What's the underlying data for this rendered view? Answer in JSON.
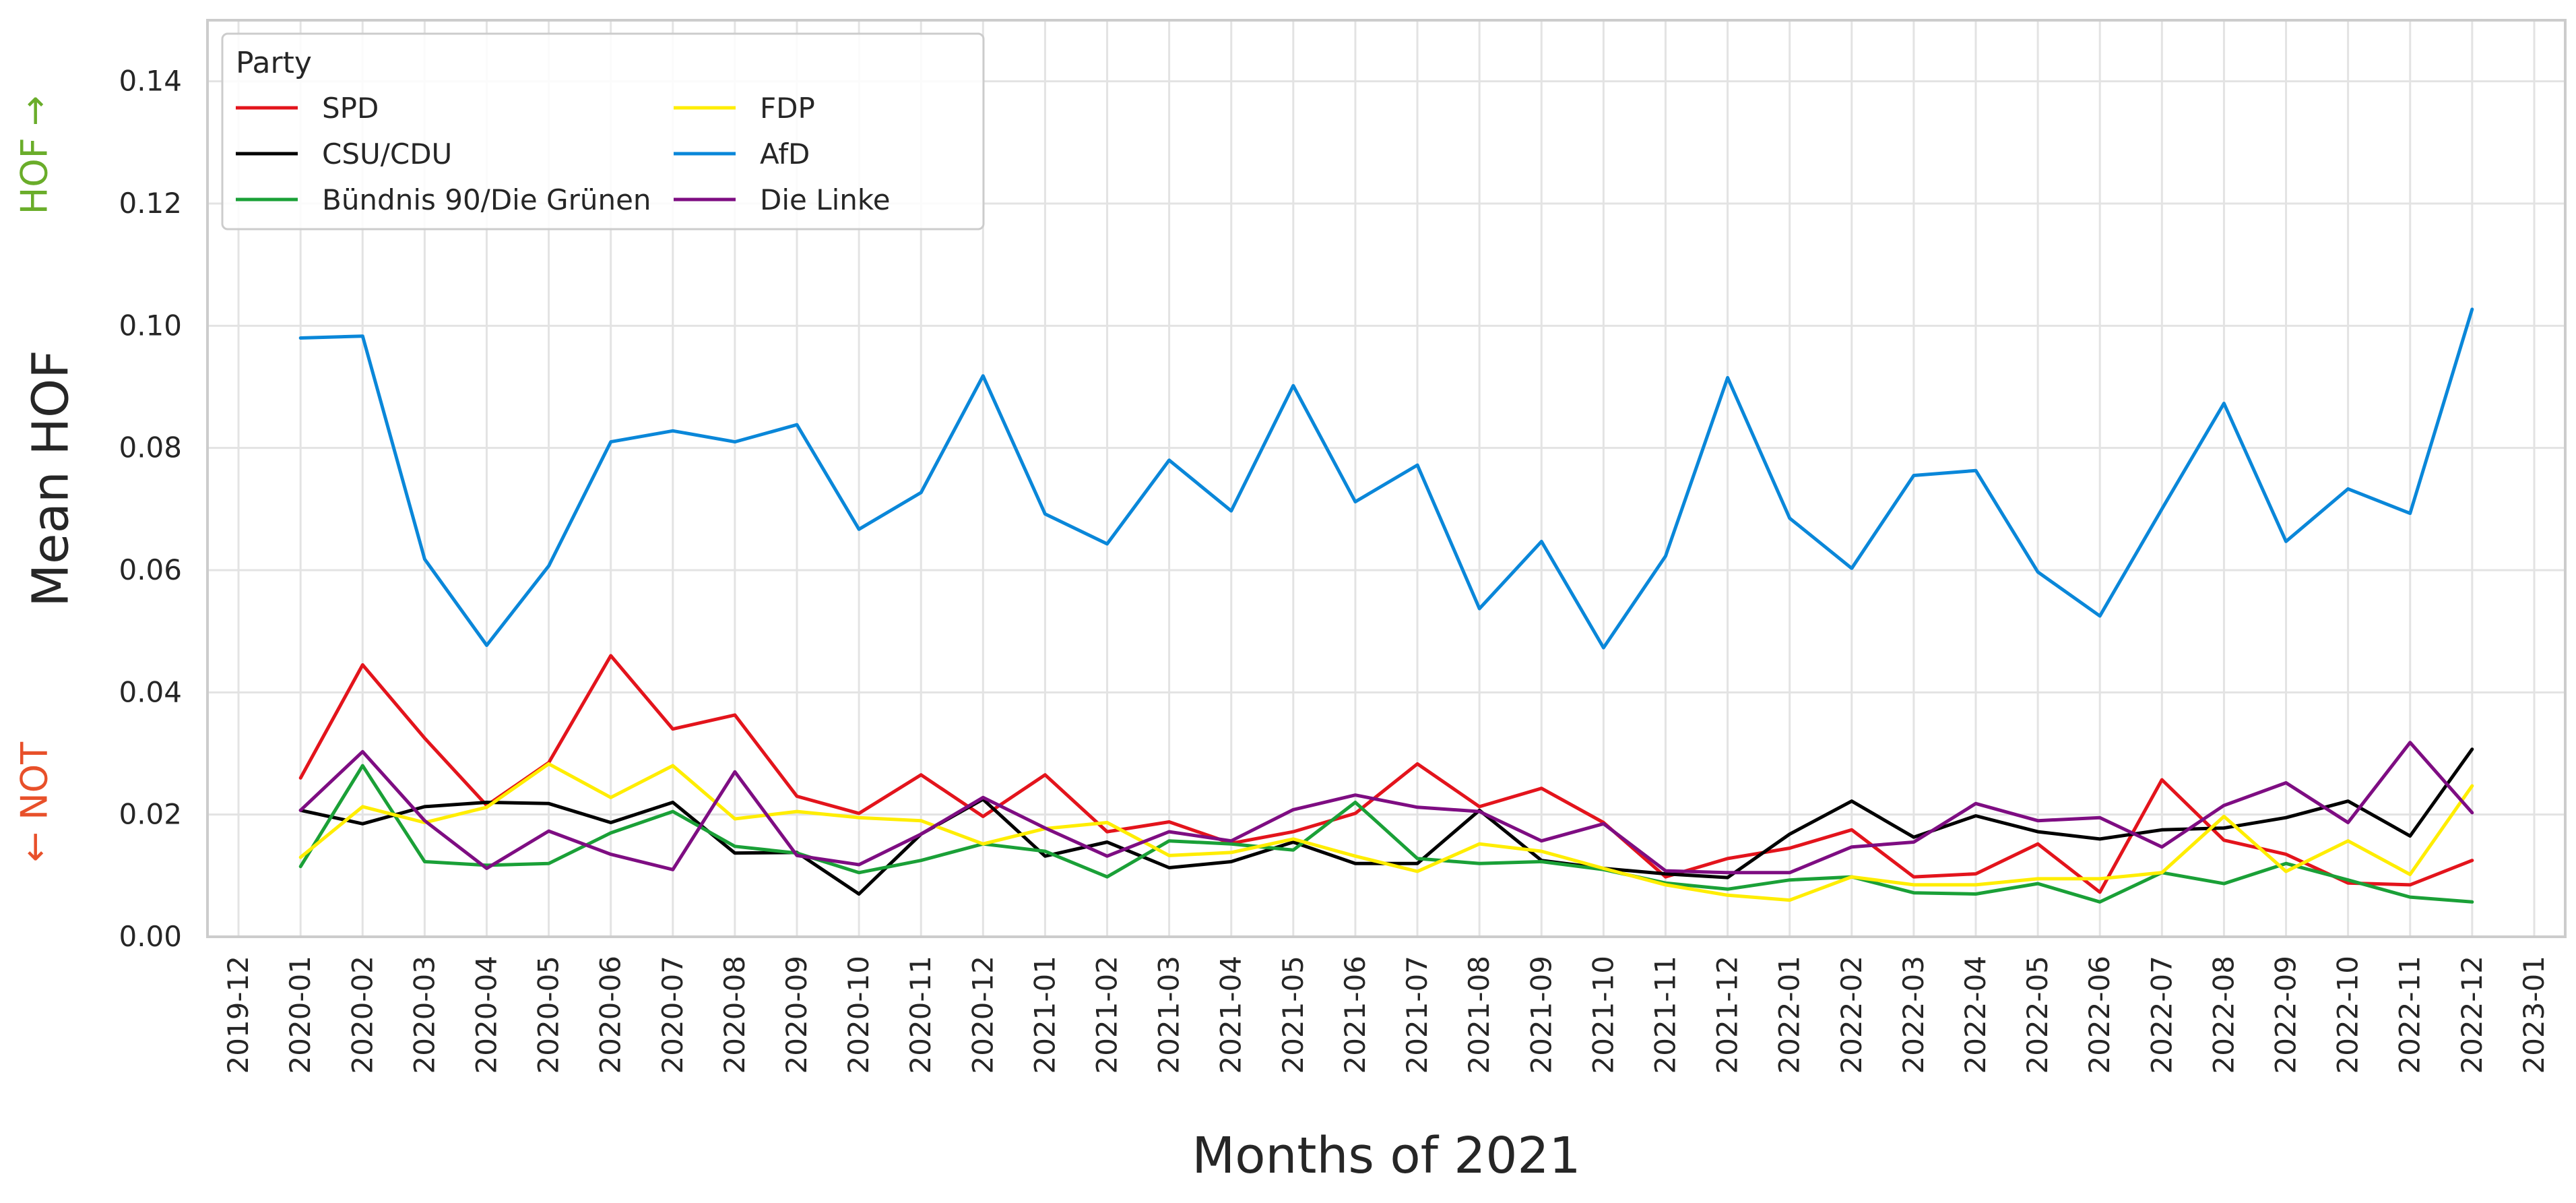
{
  "chart_data": {
    "type": "line",
    "xlabel": "Months of 2021",
    "ylabel": "Mean HOF",
    "ylim": [
      0,
      0.15
    ],
    "yticks": [
      "0.00",
      "0.02",
      "0.04",
      "0.06",
      "0.08",
      "0.10",
      "0.12",
      "0.14"
    ],
    "grid": true,
    "legend_title": "Party",
    "legend_position": "upper-left",
    "y_hint_top": "HOF →",
    "y_hint_bottom": "← NOT",
    "y_hint_top_color": "#6aad2a",
    "y_hint_bottom_color": "#e8502a",
    "x_ticks": [
      "2019-12",
      "2020-01",
      "2020-02",
      "2020-03",
      "2020-04",
      "2020-05",
      "2020-06",
      "2020-07",
      "2020-08",
      "2020-09",
      "2020-10",
      "2020-11",
      "2020-12",
      "2021-01",
      "2021-02",
      "2021-03",
      "2021-04",
      "2021-05",
      "2021-06",
      "2021-07",
      "2021-08",
      "2021-09",
      "2021-10",
      "2021-11",
      "2021-12",
      "2022-01",
      "2022-02",
      "2022-03",
      "2022-04",
      "2022-05",
      "2022-06",
      "2022-07",
      "2022-08",
      "2022-09",
      "2022-10",
      "2022-11",
      "2022-12",
      "2023-01"
    ],
    "x": [
      "2020-01",
      "2020-02",
      "2020-03",
      "2020-04",
      "2020-05",
      "2020-06",
      "2020-07",
      "2020-08",
      "2020-09",
      "2020-10",
      "2020-11",
      "2020-12",
      "2021-01",
      "2021-02",
      "2021-03",
      "2021-04",
      "2021-05",
      "2021-06",
      "2021-07",
      "2021-08",
      "2021-09",
      "2021-10",
      "2021-11",
      "2021-12",
      "2022-01",
      "2022-02",
      "2022-03",
      "2022-04",
      "2022-05",
      "2022-06",
      "2022-07",
      "2022-08",
      "2022-09",
      "2022-10",
      "2022-11",
      "2022-12"
    ],
    "series": [
      {
        "name": "SPD",
        "color": "#e3141c",
        "values": [
          0.026,
          0.0445,
          0.0325,
          0.0215,
          0.0285,
          0.046,
          0.034,
          0.0363,
          0.023,
          0.0202,
          0.0265,
          0.0197,
          0.0265,
          0.0172,
          0.0188,
          0.0153,
          0.0172,
          0.0202,
          0.0283,
          0.0213,
          0.0243,
          0.0187,
          0.0098,
          0.0128,
          0.0145,
          0.0175,
          0.0098,
          0.0103,
          0.0152,
          0.0073,
          0.0257,
          0.0158,
          0.0135,
          0.0088,
          0.0085,
          0.0125
        ]
      },
      {
        "name": "CSU/CDU",
        "color": "#000000",
        "values": [
          0.0207,
          0.0185,
          0.0213,
          0.022,
          0.0218,
          0.0187,
          0.022,
          0.0137,
          0.0138,
          0.007,
          0.0168,
          0.0225,
          0.0132,
          0.0155,
          0.0113,
          0.0123,
          0.0155,
          0.012,
          0.012,
          0.0207,
          0.0125,
          0.0112,
          0.0103,
          0.0097,
          0.0168,
          0.0222,
          0.0163,
          0.0198,
          0.0172,
          0.016,
          0.0175,
          0.0178,
          0.0195,
          0.0222,
          0.0165,
          0.0307
        ]
      },
      {
        "name": "Bündnis 90/Die Grünen",
        "color": "#1aa037",
        "values": [
          0.0115,
          0.028,
          0.0123,
          0.0117,
          0.012,
          0.017,
          0.0205,
          0.0148,
          0.0137,
          0.0105,
          0.0125,
          0.0152,
          0.014,
          0.0098,
          0.0157,
          0.0152,
          0.0142,
          0.022,
          0.0128,
          0.012,
          0.0123,
          0.011,
          0.0088,
          0.0078,
          0.0093,
          0.0098,
          0.0072,
          0.007,
          0.0087,
          0.0057,
          0.0105,
          0.0087,
          0.012,
          0.0093,
          0.0065,
          0.0057
        ]
      },
      {
        "name": "FDP",
        "color": "#ffed00",
        "values": [
          0.013,
          0.0213,
          0.0187,
          0.0212,
          0.0283,
          0.0228,
          0.028,
          0.0193,
          0.0205,
          0.0195,
          0.019,
          0.0152,
          0.0177,
          0.0187,
          0.0133,
          0.0138,
          0.016,
          0.0132,
          0.0107,
          0.0152,
          0.014,
          0.0112,
          0.0085,
          0.0068,
          0.006,
          0.0098,
          0.0085,
          0.0085,
          0.0095,
          0.0095,
          0.0105,
          0.0197,
          0.0107,
          0.0157,
          0.0102,
          0.0247
        ]
      },
      {
        "name": "AfD",
        "color": "#0a87d9",
        "values": [
          0.098,
          0.0983,
          0.0618,
          0.0477,
          0.0607,
          0.081,
          0.0828,
          0.081,
          0.0838,
          0.0667,
          0.0727,
          0.0918,
          0.0692,
          0.0643,
          0.078,
          0.0697,
          0.0902,
          0.0712,
          0.0772,
          0.0537,
          0.0647,
          0.0473,
          0.0623,
          0.0915,
          0.0685,
          0.0603,
          0.0755,
          0.0763,
          0.0597,
          0.0525,
          0.07,
          0.0873,
          0.0647,
          0.0733,
          0.0693,
          0.1027
        ]
      },
      {
        "name": "Die Linke",
        "color": "#7e0d82",
        "values": [
          0.0207,
          0.0303,
          0.019,
          0.0112,
          0.0173,
          0.0135,
          0.011,
          0.027,
          0.0133,
          0.0118,
          0.0168,
          0.0228,
          0.0178,
          0.0132,
          0.0172,
          0.0157,
          0.0208,
          0.0232,
          0.0212,
          0.0205,
          0.0157,
          0.0185,
          0.0108,
          0.0105,
          0.0105,
          0.0147,
          0.0155,
          0.0218,
          0.019,
          0.0195,
          0.0147,
          0.0215,
          0.0252,
          0.0187,
          0.0318,
          0.0203
        ]
      }
    ]
  }
}
